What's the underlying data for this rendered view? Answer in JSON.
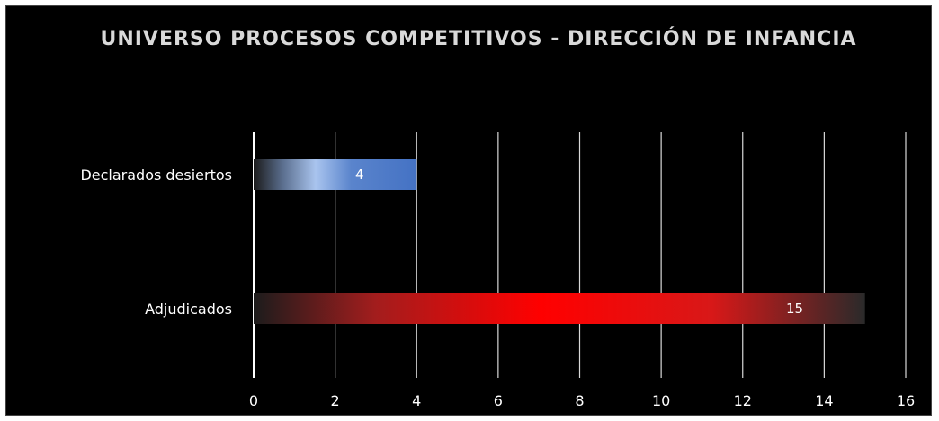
{
  "chart_data": {
    "type": "bar",
    "orientation": "horizontal",
    "title": "UNIVERSO PROCESOS COMPETITIVOS - DIRECCIÓN DE INFANCIA",
    "categories": [
      "Declarados desiertos",
      "Adjudicados"
    ],
    "values": [
      4,
      15
    ],
    "data_labels": [
      "4",
      "15"
    ],
    "xlim": [
      0,
      16
    ],
    "x_ticks": [
      0,
      2,
      4,
      6,
      8,
      10,
      12,
      14,
      16
    ],
    "grid": "vertical",
    "legend": "none",
    "colors": {
      "background": "#000000",
      "gridline": "#d9d9d9",
      "text": "#ffffff",
      "bar_declarados": "#4472c4",
      "bar_adjudicados": "#ff0000"
    }
  }
}
